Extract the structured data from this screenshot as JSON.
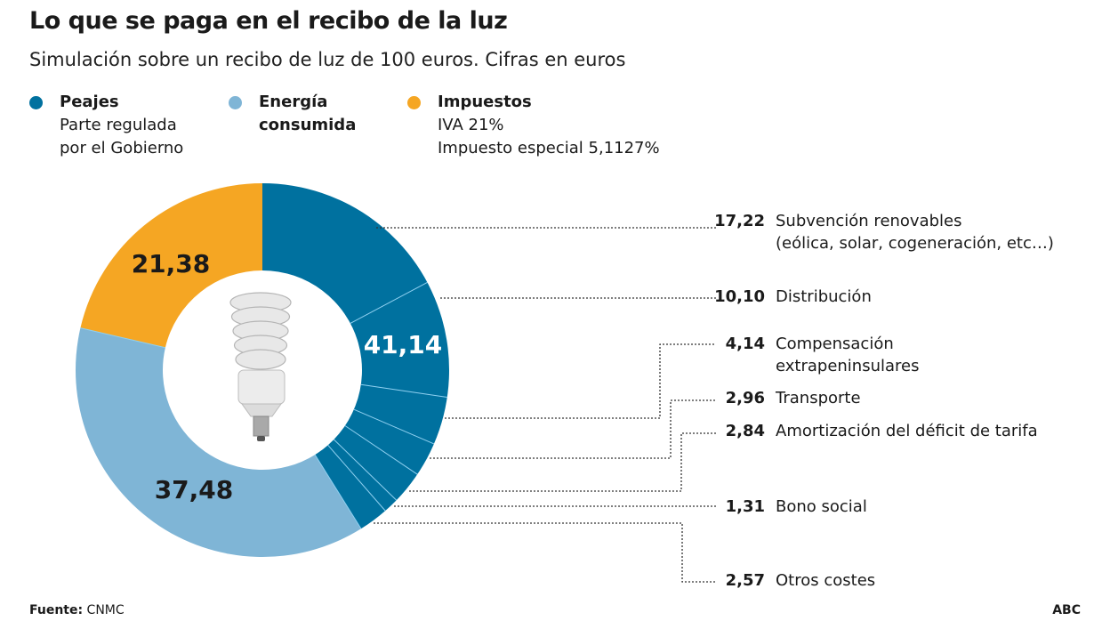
{
  "chart_data": {
    "type": "pie",
    "title": "Lo que se paga en el recibo de la luz",
    "subtitle": "Simulación sobre un recibo de luz de 100 euros. Cifras en euros",
    "legend": [
      {
        "name": "Peajes",
        "desc": [
          "Parte regulada",
          "por el Gobierno"
        ],
        "color": "#00719f"
      },
      {
        "name": "Energía consumida",
        "name_lines": [
          "Energía",
          "consumida"
        ],
        "desc": [],
        "color": "#7fb5d6"
      },
      {
        "name": "Impuestos",
        "desc": [
          "IVA 21%",
          "Impuesto especial 5,1127%"
        ],
        "color": "#f5a623"
      }
    ],
    "categories": [
      "Peajes",
      "Energía consumida",
      "Impuestos"
    ],
    "values": [
      41.14,
      37.48,
      21.38
    ],
    "value_labels": [
      "41,14",
      "37,48",
      "21,38"
    ],
    "breakdown": {
      "parent": "Peajes",
      "items": [
        {
          "label": "17,22",
          "value": 17.22,
          "text": [
            "Subvención renovables",
            "(eólica, solar, cogeneración, etc…)"
          ]
        },
        {
          "label": "10,10",
          "value": 10.1,
          "text": [
            "Distribución"
          ]
        },
        {
          "label": "4,14",
          "value": 4.14,
          "text": [
            "Compensación",
            "extrapeninsulares"
          ]
        },
        {
          "label": "2,96",
          "value": 2.96,
          "text": [
            "Transporte"
          ]
        },
        {
          "label": "2,84",
          "value": 2.84,
          "text": [
            "Amortización del déficit de tarifa"
          ]
        },
        {
          "label": "1,31",
          "value": 1.31,
          "text": [
            "Bono social"
          ]
        },
        {
          "label": "2,57",
          "value": 2.57,
          "text": [
            "Otros costes"
          ]
        }
      ]
    },
    "total": 100,
    "divider_color": "#8fd0f0"
  },
  "footer": {
    "source_label": "Fuente:",
    "source": "CNMC",
    "brand": "ABC"
  }
}
